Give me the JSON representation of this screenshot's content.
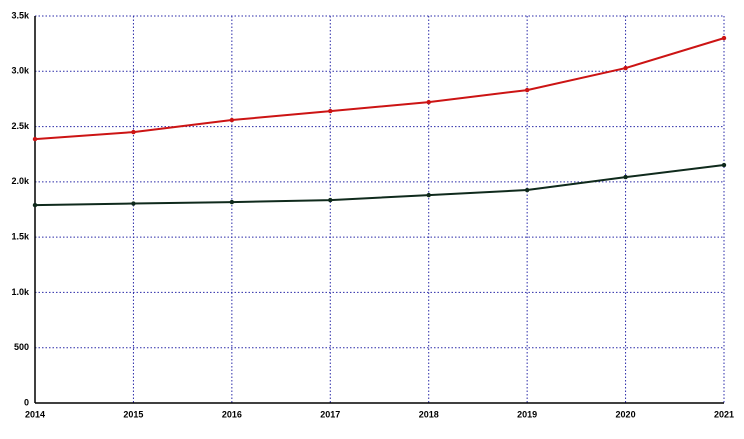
{
  "chart_data": {
    "type": "line",
    "x": [
      2014,
      2015,
      2016,
      2017,
      2018,
      2019,
      2020,
      2021
    ],
    "xlim": [
      2014,
      2021
    ],
    "xticks": [
      2014,
      2015,
      2016,
      2017,
      2018,
      2019,
      2020,
      2021
    ],
    "ylim": [
      0,
      3500
    ],
    "yticks": [
      0,
      500,
      {
        "value": 1000,
        "label": "1.0k"
      },
      {
        "value": 1500,
        "label": "1.5k"
      },
      {
        "value": 2000,
        "label": "2.0k"
      },
      {
        "value": 2500,
        "label": "2.5k"
      },
      {
        "value": 3000,
        "label": "3.0k"
      },
      {
        "value": 3500,
        "label": "3.5k"
      }
    ],
    "grid": true,
    "series": [
      {
        "color": "#cc1414",
        "values": [
          2387,
          2450,
          2559,
          2640,
          2721,
          2830,
          3029,
          3300
        ]
      },
      {
        "color": "#0f2a1c",
        "values": [
          1790,
          1804,
          1817,
          1835,
          1880,
          1926,
          2043,
          2152
        ]
      }
    ]
  }
}
